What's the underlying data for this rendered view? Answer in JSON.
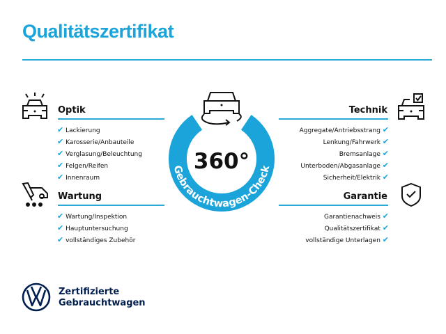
{
  "title": "Qualitätszertifikat",
  "colors": {
    "accent": "#1aa4da",
    "brand": "#001e50"
  },
  "badge": {
    "value": "360°",
    "ring_text": "Gebrauchtwagen-Check"
  },
  "sections": {
    "optik": {
      "title": "Optik",
      "icon": "car-lights-icon",
      "items": [
        "Lackierung",
        "Karosserie/Anbauteile",
        "Verglasung/Beleuchtung",
        "Felgen/Reifen",
        "Innenraum"
      ]
    },
    "wartung": {
      "title": "Wartung",
      "icon": "service-tools-icon",
      "items": [
        "Wartung/Inspektion",
        "Hauptuntersuchung",
        "vollständiges Zubehör"
      ]
    },
    "technik": {
      "title": "Technik",
      "icon": "car-checklist-icon",
      "items": [
        "Aggregate/Antriebsstrang",
        "Lenkung/Fahrwerk",
        "Bremsanlage",
        "Unterboden/Abgasanlage",
        "Sicherheit/Elektrik"
      ]
    },
    "garantie": {
      "title": "Garantie",
      "icon": "shield-check-icon",
      "items": [
        "Garantienachweis",
        "Qualitätszertifikat",
        "vollständige Unterlagen"
      ]
    }
  },
  "check_glyph": "✔",
  "brand": {
    "line1": "Zertifizierte",
    "line2": "Gebrauchtwagen",
    "logo": "VW"
  }
}
